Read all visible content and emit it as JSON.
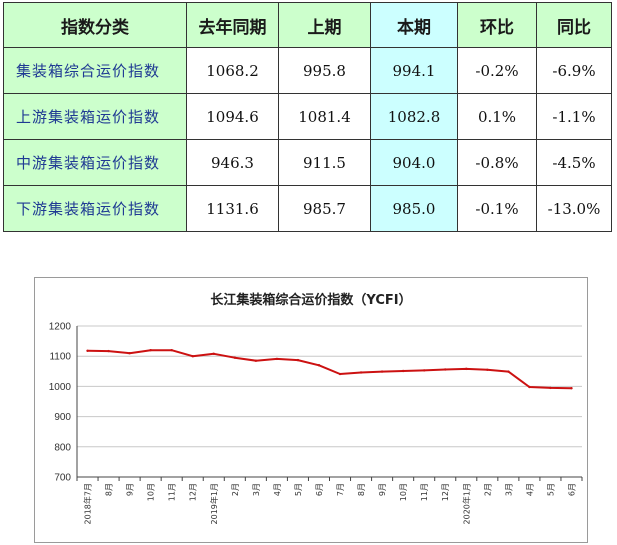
{
  "table": {
    "headers": [
      "指数分类",
      "去年同期",
      "上期",
      "本期",
      "环比",
      "同比"
    ],
    "rows": [
      {
        "name": "集装箱综合运价指数",
        "prev_year": "1068.2",
        "last": "995.8",
        "current": "994.1",
        "mom": "-0.2%",
        "yoy": "-6.9%"
      },
      {
        "name": "上游集装箱运价指数",
        "prev_year": "1094.6",
        "last": "1081.4",
        "current": "1082.8",
        "mom": "0.1%",
        "yoy": "-1.1%"
      },
      {
        "name": "中游集装箱运价指数",
        "prev_year": "946.3",
        "last": "911.5",
        "current": "904.0",
        "mom": "-0.8%",
        "yoy": "-4.5%"
      },
      {
        "name": "下游集装箱运价指数",
        "prev_year": "1131.6",
        "last": "985.7",
        "current": "985.0",
        "mom": "-0.1%",
        "yoy": "-13.0%"
      }
    ]
  },
  "colors": {
    "green_cell": "#ccffcc",
    "cyan_cell": "#ccffff",
    "name_text": "#1f3a93",
    "line": "#cc1111",
    "grid": "#c8c8c8"
  },
  "chart_data": {
    "type": "line",
    "title": "长江集装箱综合运价指数（YCFI）",
    "categories": [
      "2018年7月",
      "8月",
      "9月",
      "10月",
      "11月",
      "12月",
      "2019年1月",
      "2月",
      "3月",
      "4月",
      "5月",
      "6月",
      "7月",
      "8月",
      "9月",
      "10月",
      "11月",
      "12月",
      "2020年1月",
      "2月",
      "3月",
      "4月",
      "5月",
      "6月"
    ],
    "series": [
      {
        "values": [
          1118,
          1117,
          1110,
          1120,
          1120,
          1100,
          1108,
          1095,
          1085,
          1091,
          1087,
          1070,
          1041,
          1046,
          1049,
          1051,
          1053,
          1056,
          1058,
          1055,
          1049,
          998,
          995,
          994
        ]
      }
    ],
    "yticks": [
      700,
      800,
      900,
      1000,
      1100,
      1200
    ],
    "ylim": [
      700,
      1200
    ],
    "grid": true,
    "legend": "none"
  }
}
